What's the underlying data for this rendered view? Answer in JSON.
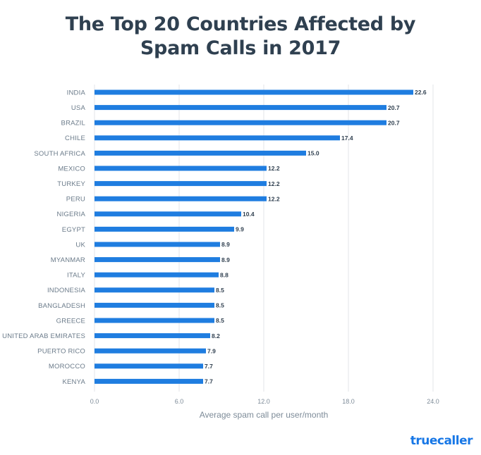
{
  "brand": {
    "logo_text": "truecaller",
    "color": "#1777e6"
  },
  "chart_data": {
    "type": "bar",
    "orientation": "horizontal",
    "title": [
      "The Top 20 Countries Affected by",
      "Spam Calls in 2017"
    ],
    "xlabel": "Average spam call per user/month",
    "ylabel": "",
    "xlim": [
      0,
      24
    ],
    "xticks": [
      "0.0",
      "6.0",
      "12.0",
      "18.0",
      "24.0"
    ],
    "xtick_values": [
      0,
      6,
      12,
      18,
      24
    ],
    "grid": "vertical",
    "bar_color": "#1f7de0",
    "categories": [
      "INDIA",
      "USA",
      "BRAZIL",
      "CHILE",
      "SOUTH AFRICA",
      "MEXICO",
      "TURKEY",
      "PERU",
      "NIGERIA",
      "EGYPT",
      "UK",
      "MYANMAR",
      "ITALY",
      "INDONESIA",
      "BANGLADESH",
      "GREECE",
      "UNITED ARAB EMIRATES",
      "PUERTO RICO",
      "MOROCCO",
      "KENYA"
    ],
    "values": [
      22.6,
      20.7,
      20.7,
      17.4,
      15.0,
      12.2,
      12.2,
      12.2,
      10.4,
      9.9,
      8.9,
      8.9,
      8.8,
      8.5,
      8.5,
      8.5,
      8.2,
      7.9,
      7.7,
      7.7
    ],
    "value_labels": [
      "22.6",
      "20.7",
      "20.7",
      "17.4",
      "15.0",
      "12.2",
      "12.2",
      "12.2",
      "10.4",
      "9.9",
      "8.9",
      "8.9",
      "8.8",
      "8.5",
      "8.5",
      "8.5",
      "8.2",
      "7.9",
      "7.7",
      "7.7"
    ]
  }
}
